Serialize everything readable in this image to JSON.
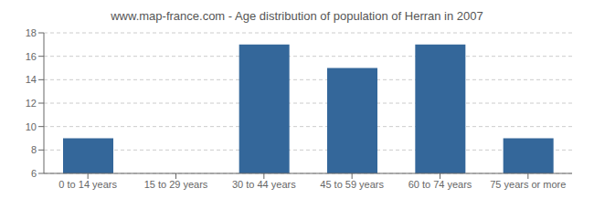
{
  "chart_data": {
    "type": "bar",
    "title": "www.map-france.com - Age distribution of population of Herran in 2007",
    "categories": [
      "0 to 14 years",
      "15 to 29 years",
      "30 to 44 years",
      "45 to 59 years",
      "60 to 74 years",
      "75 years or more"
    ],
    "values": [
      9,
      6,
      17,
      15,
      17,
      9
    ],
    "color": "#34679a",
    "ylim": [
      6,
      18
    ],
    "yticks": [
      6,
      8,
      10,
      12,
      14,
      16,
      18
    ],
    "grid": true
  }
}
